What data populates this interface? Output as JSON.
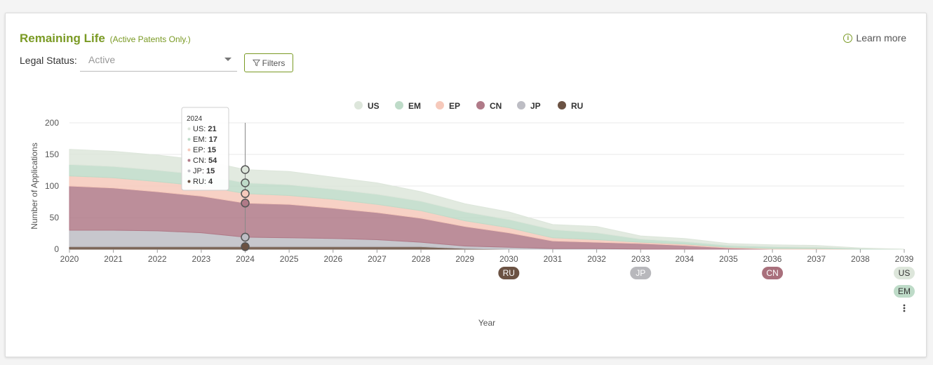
{
  "header": {
    "title": "Remaining Life",
    "subtitle": "(Active Patents Only.)",
    "learn_more": "Learn more"
  },
  "filters": {
    "legal_status_label": "Legal Status:",
    "legal_status_value": "Active",
    "filters_button": "Filters"
  },
  "chart_data": {
    "type": "area",
    "stacked": true,
    "xlabel": "Year",
    "ylabel": "Number of Applications",
    "ylim": [
      0,
      200
    ],
    "yticks": [
      0,
      50,
      100,
      150,
      200
    ],
    "x": [
      "2020",
      "2021",
      "2022",
      "2023",
      "2024",
      "2025",
      "2026",
      "2027",
      "2028",
      "2029",
      "2030",
      "2031",
      "2032",
      "2033",
      "2034",
      "2035",
      "2036",
      "2037",
      "2038",
      "2039"
    ],
    "grid": true,
    "legend_position": "top-center",
    "series": [
      {
        "name": "RU",
        "color": "#6b5243",
        "values": [
          4,
          4,
          4,
          4,
          4,
          4,
          4,
          4,
          4,
          1,
          0,
          0,
          0,
          0,
          0,
          0,
          0,
          0,
          0,
          0
        ]
      },
      {
        "name": "JP",
        "color": "#bdbdc4",
        "values": [
          26,
          26,
          25,
          22,
          15,
          14,
          13,
          11,
          7,
          4,
          3,
          1,
          1,
          0,
          0,
          0,
          0,
          0,
          0,
          0
        ]
      },
      {
        "name": "CN",
        "color": "#b07a88",
        "values": [
          70,
          67,
          62,
          58,
          54,
          53,
          48,
          43,
          38,
          31,
          23,
          12,
          10,
          9,
          6,
          2,
          0,
          0,
          0,
          0
        ]
      },
      {
        "name": "EP",
        "color": "#f6c9bb",
        "values": [
          16,
          16,
          16,
          16,
          15,
          14,
          14,
          13,
          12,
          9,
          8,
          5,
          4,
          2,
          2,
          1,
          1,
          1,
          0,
          0
        ]
      },
      {
        "name": "EM",
        "color": "#bedbc8",
        "values": [
          18,
          18,
          18,
          18,
          17,
          17,
          16,
          16,
          15,
          14,
          13,
          13,
          11,
          5,
          4,
          3,
          3,
          2,
          1,
          0
        ]
      },
      {
        "name": "US",
        "color": "#dde6db",
        "values": [
          24,
          24,
          24,
          23,
          21,
          21,
          19,
          18,
          15,
          13,
          12,
          8,
          10,
          5,
          5,
          3,
          3,
          3,
          1,
          0
        ]
      }
    ],
    "tooltip": {
      "x": "2024",
      "rows": [
        {
          "label": "US:",
          "value": "21",
          "color": "#dde6db"
        },
        {
          "label": "EM:",
          "value": "17",
          "color": "#bedbc8"
        },
        {
          "label": "EP:",
          "value": "15",
          "color": "#f6c9bb"
        },
        {
          "label": "CN:",
          "value": "54",
          "color": "#b07a88"
        },
        {
          "label": "JP:",
          "value": "15",
          "color": "#bdbdc4"
        },
        {
          "label": "RU:",
          "value": "4",
          "color": "#6b5243"
        }
      ]
    },
    "expiry_badges": [
      {
        "label": "RU",
        "year": "2030",
        "color": "#6b5243",
        "text_color": "#ffffff"
      },
      {
        "label": "JP",
        "year": "2033",
        "color": "#b8b8bc",
        "text_color": "#ffffff"
      },
      {
        "label": "CN",
        "year": "2036",
        "color": "#a9707c",
        "text_color": "#ffffff"
      },
      {
        "label": "US",
        "year": "2039",
        "color": "#dde6db",
        "text_color": "#333333"
      },
      {
        "label": "EM",
        "year": "2039",
        "color": "#bedbc8",
        "text_color": "#333333"
      }
    ],
    "colors": {
      "accent": "#7a9a24",
      "grid": "#e8e8e8",
      "axis": "#999999"
    }
  }
}
